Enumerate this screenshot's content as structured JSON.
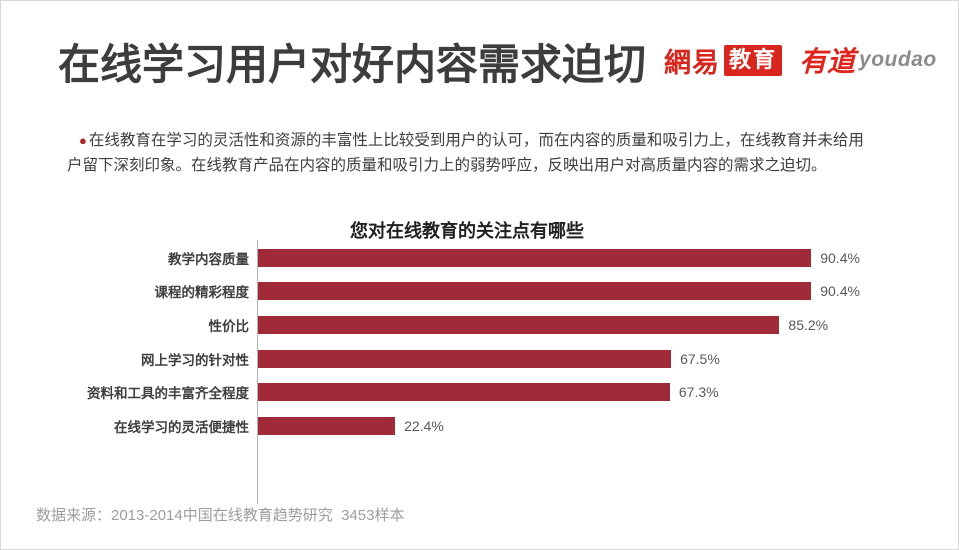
{
  "slide": {
    "title": "在线学习用户对好内容需求迫切",
    "intro": {
      "bullet": "●",
      "line1": "在线教育在学习的灵活性和资源的丰富性上比较受到用户的认可，而在内容的质量和吸引力上，在线教育并未给用",
      "line2": "户留下深刻印象。在线教育产品在内容的质量和吸引力上的弱势呼应，反映出用户对高质量内容的需求之迫切。"
    },
    "source": "数据来源：2013-2014中国在线教育趋势研究  3453样本"
  },
  "logo": {
    "netease": "網易",
    "edu_badge": "教育",
    "youdao_cn": "有道",
    "youdao_en": "youdao",
    "red": "#d8251d",
    "gray": "#8b8b8b"
  },
  "chart_data": {
    "type": "bar",
    "orientation": "horizontal",
    "title": "您对在线教育的关注点有哪些",
    "categories": [
      "教学内容质量",
      "课程的精彩程度",
      "性价比",
      "网上学习的针对性",
      "资料和工具的丰富齐全程度",
      "在线学习的灵活便捷性"
    ],
    "values": [
      90.4,
      90.4,
      85.2,
      67.5,
      67.3,
      22.4
    ],
    "value_labels": [
      "90.4%",
      "90.4%",
      "85.2%",
      "67.5%",
      "67.3%",
      "22.4%"
    ],
    "unit": "%",
    "xlim": [
      0,
      100
    ],
    "bar_color": "#a02a38",
    "axis_color": "#b4b4b4",
    "label_color": "#3f3f3f",
    "value_color": "#595959",
    "grid": false,
    "legend": false
  }
}
